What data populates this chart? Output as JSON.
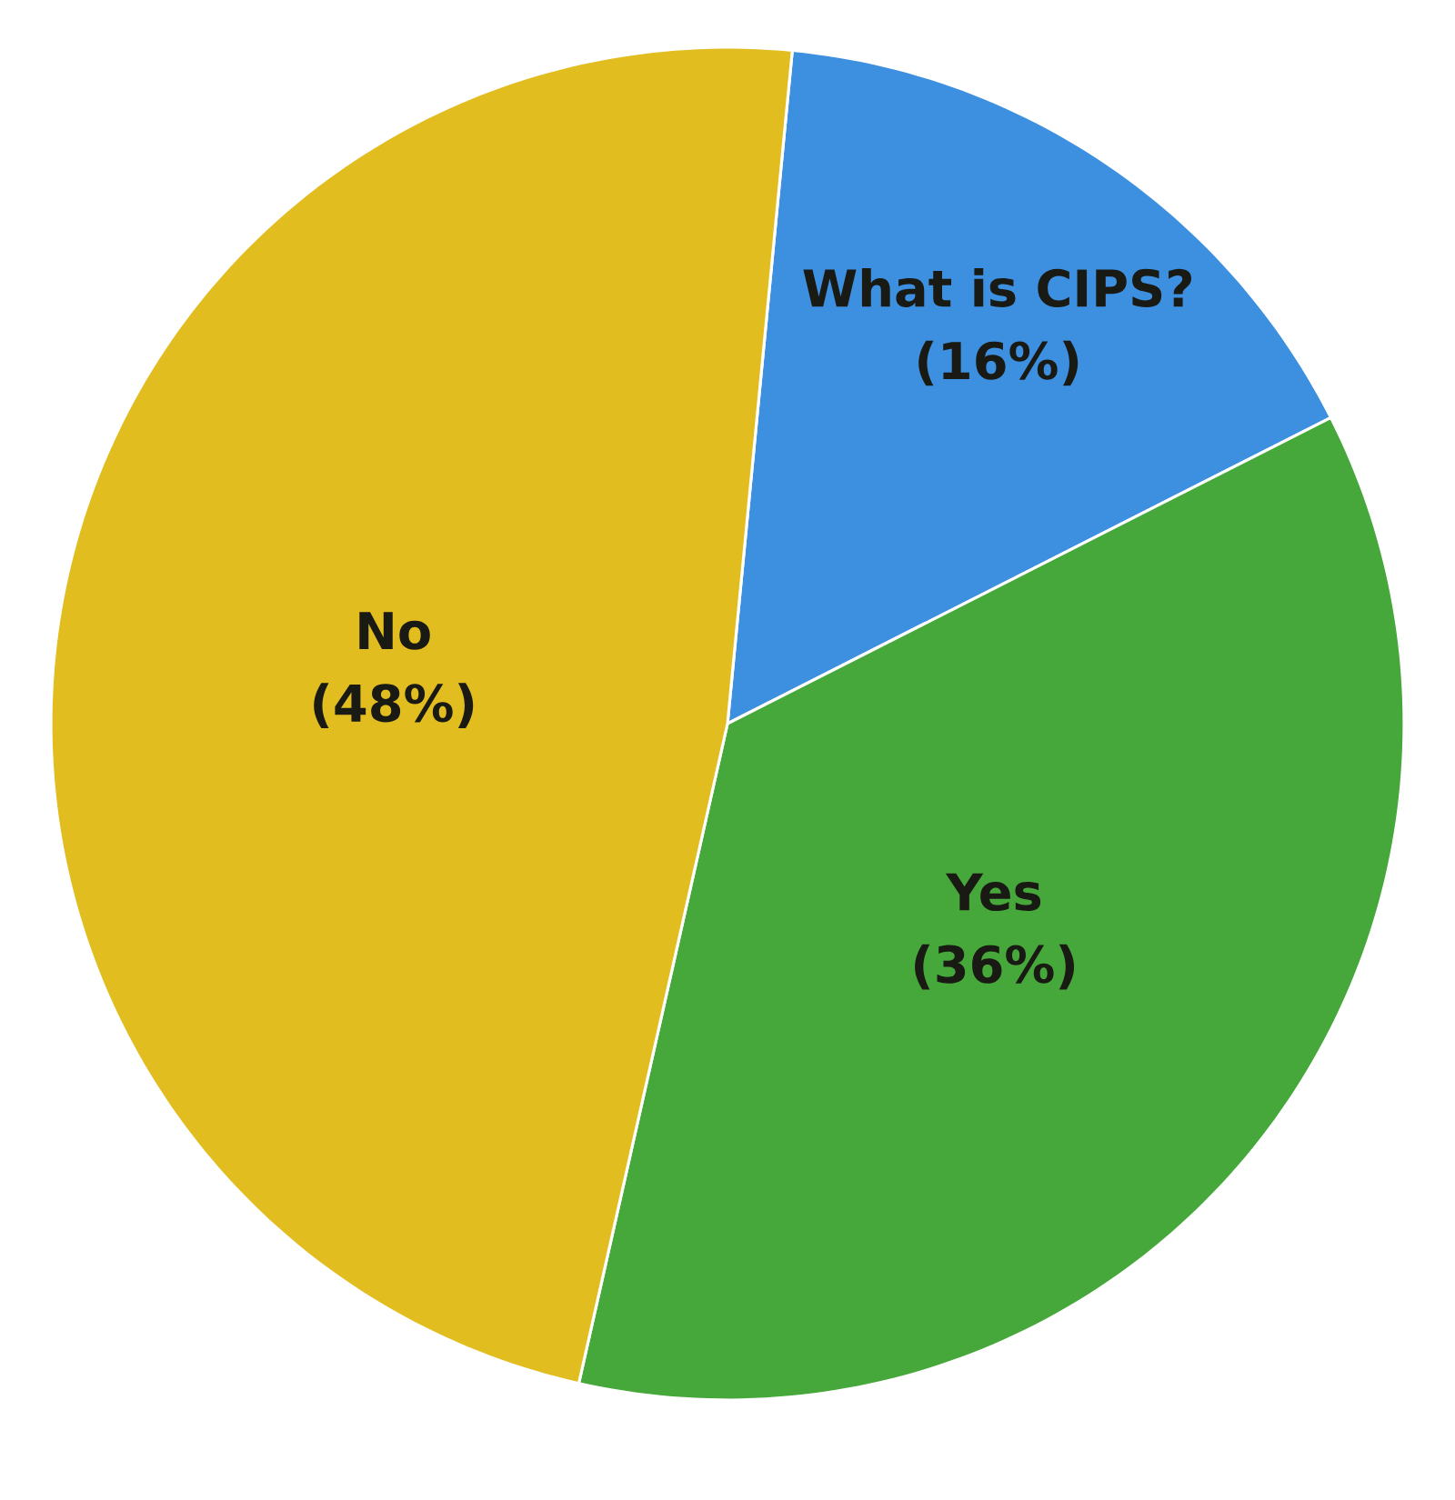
{
  "chart_data": {
    "type": "pie",
    "categories": [
      "What is CIPS?",
      "Yes",
      "No"
    ],
    "values": [
      16,
      36,
      48
    ],
    "value_labels": [
      "(16%)",
      "(36%)",
      "(48%)"
    ],
    "colors": [
      "#3d8fe0",
      "#46a83a",
      "#e2bd20"
    ]
  }
}
